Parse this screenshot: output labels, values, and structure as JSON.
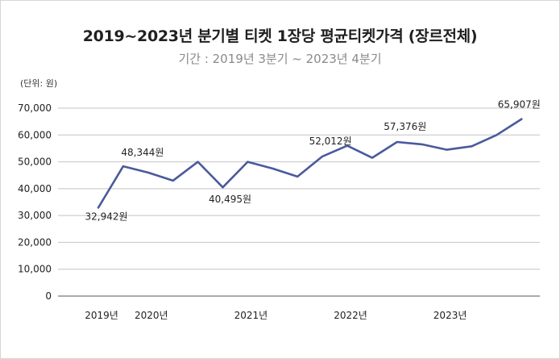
{
  "chart_data": {
    "type": "line",
    "title": "2019~2023년 분기별 티켓 1장당 평균티켓가격 (장르전체)",
    "subtitle": "기간 : 2019년 3분기 ~ 2023년 4분기",
    "unit_label": "(단위: 원)",
    "ylim": [
      0,
      70000
    ],
    "yticks": [
      0,
      10000,
      20000,
      30000,
      40000,
      50000,
      60000,
      70000
    ],
    "ytick_labels": [
      "0",
      "10,000",
      "20,000",
      "30,000",
      "40,000",
      "50,000",
      "60,000",
      "70,000"
    ],
    "xlabels": [
      {
        "label": "2019년",
        "index": 0
      },
      {
        "label": "2020년",
        "index": 2
      },
      {
        "label": "2021년",
        "index": 6
      },
      {
        "label": "2022년",
        "index": 10
      },
      {
        "label": "2023년",
        "index": 14
      }
    ],
    "grid": true,
    "line_color": "#4a5a9c",
    "series": [
      {
        "values": [
          32942,
          48344,
          46000,
          43000,
          50000,
          40495,
          50000,
          47500,
          44500,
          52012,
          56000,
          51500,
          57376,
          56500,
          54500,
          55800,
          60000,
          65907
        ]
      }
    ],
    "data_labels": [
      {
        "index": 0,
        "text": "32,942원"
      },
      {
        "index": 1,
        "text": "48,344원"
      },
      {
        "index": 5,
        "text": "40,495원"
      },
      {
        "index": 9,
        "text": "52,012원"
      },
      {
        "index": 12,
        "text": "57,376원"
      },
      {
        "index": 17,
        "text": "65,907원"
      }
    ]
  }
}
